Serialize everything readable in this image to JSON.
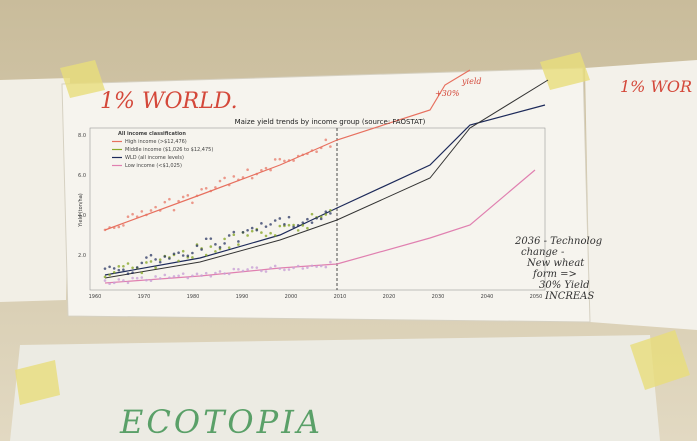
{
  "handwriting": {
    "main_heading": "1% WORLD.",
    "right_heading": "1% WOR",
    "top_note": [
      "+30%",
      "yield"
    ],
    "side_note": [
      "2036 - Technolog",
      "change -",
      "New wheat",
      "form =>",
      "30% Yield",
      "INCREAS"
    ],
    "bottom_label": "ECOTOPIA"
  },
  "printed_chart": {
    "title": "Maize yield trends by income group  (source: FAOSTAT)",
    "y_axis_label": "Yield (ton/ha)",
    "legend": {
      "header": "All income classification",
      "entries": [
        "High income (>$12,476)",
        "Middle income ($1,026 to $12,475)",
        "WLD (all income levels)",
        "Low income (<$1,025)"
      ]
    },
    "y_tick_labels": [
      "8.0",
      "6.0",
      "4.0",
      "2.0"
    ],
    "x_tick_labels": [
      "1960",
      "1970",
      "1980",
      "1990",
      "2000",
      "2010",
      "2020",
      "2030",
      "2040",
      "2050"
    ]
  }
}
